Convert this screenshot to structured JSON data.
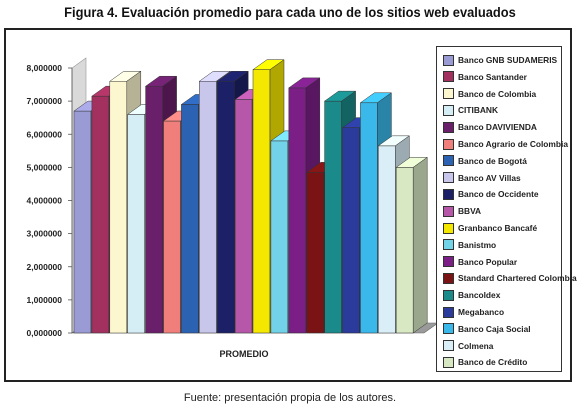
{
  "figure": {
    "title": "Figura 4. Evaluación promedio para cada uno de los sitios web evaluados",
    "source": "Fuente: presentación propia de los autores."
  },
  "chart_data": {
    "type": "bar",
    "categories": [
      "PROMEDIO"
    ],
    "ylim": [
      0,
      8
    ],
    "yticks": [
      "0,000000",
      "1,000000",
      "2,000000",
      "3,000000",
      "4,000000",
      "5,000000",
      "6,000000",
      "7,000000",
      "8,000000"
    ],
    "legend_position": "right",
    "series": [
      {
        "name": "Banco GNB SUDAMERIS",
        "values": [
          6.7
        ],
        "color": "#9a9ad4"
      },
      {
        "name": "Banco Santander",
        "values": [
          7.15
        ],
        "color": "#a3315f"
      },
      {
        "name": "Banco de Colombia",
        "values": [
          7.6
        ],
        "color": "#fdf7cf"
      },
      {
        "name": "CITIBANK",
        "values": [
          6.6
        ],
        "color": "#d5eef5"
      },
      {
        "name": "Banco DAVIVIENDA",
        "values": [
          7.45
        ],
        "color": "#6a1f6a"
      },
      {
        "name": "Banco Agrario de Colombia",
        "values": [
          6.4
        ],
        "color": "#f07f7b"
      },
      {
        "name": "Banco de Bogotá",
        "values": [
          6.9
        ],
        "color": "#2c62b2"
      },
      {
        "name": "Banco AV Villas",
        "values": [
          7.6
        ],
        "color": "#c8c6ea"
      },
      {
        "name": "Banco de Occidente",
        "values": [
          7.6
        ],
        "color": "#1c2066"
      },
      {
        "name": "BBVA",
        "values": [
          7.05
        ],
        "color": "#b657aa"
      },
      {
        "name": "Granbanco Bancafé",
        "values": [
          7.95
        ],
        "color": "#f4e800"
      },
      {
        "name": "Banistmo",
        "values": [
          5.8
        ],
        "color": "#72d2e8"
      },
      {
        "name": "Banco Popular",
        "values": [
          7.4
        ],
        "color": "#7b1f87"
      },
      {
        "name": "Standard Chartered Colombia",
        "values": [
          4.85
        ],
        "color": "#7a1414"
      },
      {
        "name": "Bancoldex",
        "values": [
          7.0
        ],
        "color": "#1a8a8a"
      },
      {
        "name": "Megabanco",
        "values": [
          6.2
        ],
        "color": "#2a3b9b"
      },
      {
        "name": "Banco Caja Social",
        "values": [
          6.95
        ],
        "color": "#3bb8ea"
      },
      {
        "name": "Colmena",
        "values": [
          5.65
        ],
        "color": "#d9eef7"
      },
      {
        "name": "Banco de Crédito",
        "values": [
          5.0
        ],
        "color": "#d7e8c2"
      }
    ]
  }
}
